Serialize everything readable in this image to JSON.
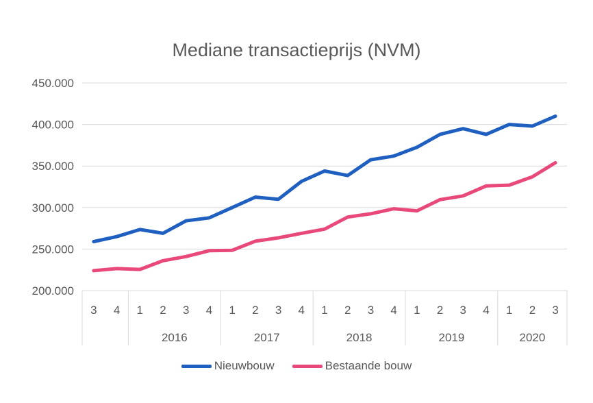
{
  "chart_data": {
    "type": "line",
    "title": "Mediane transactieprijs (NVM)",
    "xlabel": "",
    "ylabel": "",
    "ylim": [
      200000,
      450000
    ],
    "y_ticks": [
      "200.000",
      "250.000",
      "300.000",
      "350.000",
      "400.000",
      "450.000"
    ],
    "grid": true,
    "legend_position": "bottom",
    "categories": [
      "3",
      "4",
      "1",
      "2",
      "3",
      "4",
      "1",
      "2",
      "3",
      "4",
      "1",
      "2",
      "3",
      "4",
      "1",
      "2",
      "3",
      "4",
      "1",
      "2",
      "3"
    ],
    "groups": [
      {
        "label": "",
        "count": 2
      },
      {
        "label": "2016",
        "count": 4
      },
      {
        "label": "2017",
        "count": 4
      },
      {
        "label": "2018",
        "count": 4
      },
      {
        "label": "2019",
        "count": 4
      },
      {
        "label": "2020",
        "count": 3
      }
    ],
    "series": [
      {
        "name": "Nieuwbouw",
        "color": "#1f5fbf",
        "values": [
          259000,
          265000,
          273500,
          269000,
          284000,
          287500,
          300000,
          312500,
          310000,
          331500,
          344000,
          338500,
          357500,
          362000,
          372500,
          388000,
          395000,
          388000,
          400000,
          398000,
          410000
        ]
      },
      {
        "name": "Bestaande bouw",
        "color": "#e8497a",
        "values": [
          224000,
          226500,
          225500,
          236000,
          241000,
          248000,
          248500,
          259500,
          263500,
          269000,
          274000,
          288500,
          292500,
          298500,
          296000,
          309500,
          314000,
          326000,
          327000,
          337000,
          354000
        ]
      }
    ]
  }
}
